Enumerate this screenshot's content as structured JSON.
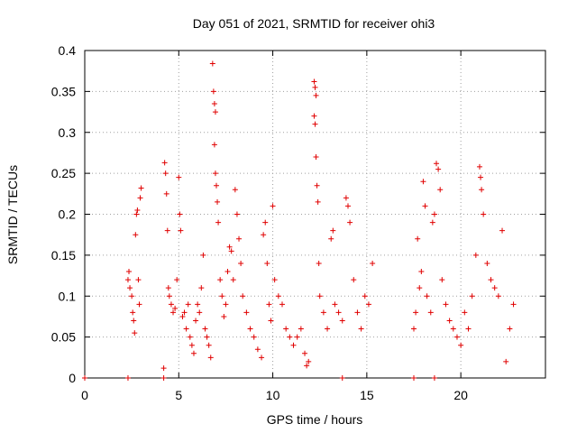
{
  "chart_data": {
    "type": "scatter",
    "title": "Day 051 of 2021, SRMTID for receiver ohi3",
    "xlabel": "GPS time / hours",
    "ylabel": "SRMTID / TECUs",
    "xlim": [
      0,
      24.5
    ],
    "ylim": [
      0,
      0.4
    ],
    "xticks": [
      0,
      5,
      10,
      15,
      20
    ],
    "xtick_labels": [
      "0",
      "5",
      "10",
      "15",
      "20"
    ],
    "yticks": [
      0,
      0.05,
      0.1,
      0.15,
      0.2,
      0.25,
      0.3,
      0.35,
      0.4
    ],
    "ytick_labels": [
      "0",
      "0.05",
      "0.1",
      "0.15",
      "0.2",
      "0.25",
      "0.3",
      "0.35",
      "0.4"
    ],
    "grid": true,
    "marker": "+",
    "color": "#e00000",
    "series": [
      {
        "name": "SRMTID",
        "points": [
          [
            0.0,
            0.0
          ],
          [
            2.3,
            0.0
          ],
          [
            4.2,
            0.0
          ],
          [
            13.7,
            0.0
          ],
          [
            17.5,
            0.0
          ],
          [
            18.6,
            0.0
          ],
          [
            2.3,
            0.12
          ],
          [
            2.35,
            0.13
          ],
          [
            2.4,
            0.11
          ],
          [
            2.5,
            0.1
          ],
          [
            2.55,
            0.08
          ],
          [
            2.6,
            0.07
          ],
          [
            2.65,
            0.055
          ],
          [
            2.7,
            0.175
          ],
          [
            2.75,
            0.2
          ],
          [
            2.8,
            0.205
          ],
          [
            2.85,
            0.12
          ],
          [
            2.9,
            0.09
          ],
          [
            2.95,
            0.22
          ],
          [
            3.0,
            0.232
          ],
          [
            4.2,
            0.012
          ],
          [
            4.25,
            0.263
          ],
          [
            4.3,
            0.25
          ],
          [
            4.35,
            0.225
          ],
          [
            4.4,
            0.18
          ],
          [
            4.45,
            0.11
          ],
          [
            4.5,
            0.1
          ],
          [
            4.6,
            0.09
          ],
          [
            4.7,
            0.08
          ],
          [
            4.8,
            0.085
          ],
          [
            4.9,
            0.12
          ],
          [
            5.0,
            0.245
          ],
          [
            5.05,
            0.2
          ],
          [
            5.1,
            0.18
          ],
          [
            5.2,
            0.075
          ],
          [
            5.3,
            0.08
          ],
          [
            5.4,
            0.06
          ],
          [
            5.5,
            0.09
          ],
          [
            5.6,
            0.05
          ],
          [
            5.7,
            0.04
          ],
          [
            5.8,
            0.03
          ],
          [
            5.9,
            0.07
          ],
          [
            6.0,
            0.09
          ],
          [
            6.1,
            0.08
          ],
          [
            6.2,
            0.11
          ],
          [
            6.3,
            0.15
          ],
          [
            6.4,
            0.06
          ],
          [
            6.5,
            0.05
          ],
          [
            6.6,
            0.04
          ],
          [
            6.7,
            0.025
          ],
          [
            6.8,
            0.384
          ],
          [
            6.85,
            0.35
          ],
          [
            6.9,
            0.335
          ],
          [
            6.95,
            0.325
          ],
          [
            6.9,
            0.285
          ],
          [
            6.95,
            0.25
          ],
          [
            7.0,
            0.235
          ],
          [
            7.05,
            0.215
          ],
          [
            7.1,
            0.19
          ],
          [
            7.2,
            0.12
          ],
          [
            7.3,
            0.1
          ],
          [
            7.4,
            0.075
          ],
          [
            7.5,
            0.09
          ],
          [
            7.6,
            0.13
          ],
          [
            7.7,
            0.16
          ],
          [
            7.8,
            0.155
          ],
          [
            7.9,
            0.12
          ],
          [
            8.0,
            0.23
          ],
          [
            8.1,
            0.2
          ],
          [
            8.2,
            0.17
          ],
          [
            8.3,
            0.14
          ],
          [
            8.4,
            0.1
          ],
          [
            8.6,
            0.08
          ],
          [
            8.8,
            0.06
          ],
          [
            9.0,
            0.05
          ],
          [
            9.2,
            0.035
          ],
          [
            9.4,
            0.025
          ],
          [
            9.5,
            0.175
          ],
          [
            9.6,
            0.19
          ],
          [
            9.7,
            0.14
          ],
          [
            9.8,
            0.09
          ],
          [
            9.9,
            0.07
          ],
          [
            10.0,
            0.21
          ],
          [
            10.1,
            0.12
          ],
          [
            10.3,
            0.1
          ],
          [
            10.5,
            0.09
          ],
          [
            10.7,
            0.06
          ],
          [
            10.9,
            0.05
          ],
          [
            11.1,
            0.04
          ],
          [
            11.3,
            0.05
          ],
          [
            11.5,
            0.06
          ],
          [
            11.7,
            0.03
          ],
          [
            11.8,
            0.015
          ],
          [
            11.9,
            0.02
          ],
          [
            12.2,
            0.362
          ],
          [
            12.25,
            0.355
          ],
          [
            12.3,
            0.345
          ],
          [
            12.2,
            0.32
          ],
          [
            12.25,
            0.31
          ],
          [
            12.3,
            0.27
          ],
          [
            12.35,
            0.235
          ],
          [
            12.4,
            0.215
          ],
          [
            12.45,
            0.14
          ],
          [
            12.5,
            0.1
          ],
          [
            12.7,
            0.08
          ],
          [
            12.9,
            0.06
          ],
          [
            13.1,
            0.17
          ],
          [
            13.2,
            0.18
          ],
          [
            13.3,
            0.09
          ],
          [
            13.5,
            0.08
          ],
          [
            13.7,
            0.07
          ],
          [
            13.9,
            0.22
          ],
          [
            14.0,
            0.21
          ],
          [
            14.1,
            0.19
          ],
          [
            14.3,
            0.12
          ],
          [
            14.5,
            0.08
          ],
          [
            14.7,
            0.06
          ],
          [
            14.9,
            0.1
          ],
          [
            15.1,
            0.09
          ],
          [
            15.3,
            0.14
          ],
          [
            17.5,
            0.06
          ],
          [
            17.6,
            0.08
          ],
          [
            17.7,
            0.17
          ],
          [
            17.8,
            0.11
          ],
          [
            17.9,
            0.13
          ],
          [
            18.0,
            0.24
          ],
          [
            18.1,
            0.21
          ],
          [
            18.2,
            0.1
          ],
          [
            18.4,
            0.08
          ],
          [
            18.5,
            0.19
          ],
          [
            18.6,
            0.2
          ],
          [
            18.7,
            0.262
          ],
          [
            18.8,
            0.255
          ],
          [
            18.9,
            0.23
          ],
          [
            19.0,
            0.12
          ],
          [
            19.2,
            0.09
          ],
          [
            19.4,
            0.07
          ],
          [
            19.6,
            0.06
          ],
          [
            19.8,
            0.05
          ],
          [
            20.0,
            0.04
          ],
          [
            20.2,
            0.08
          ],
          [
            20.4,
            0.06
          ],
          [
            20.6,
            0.1
          ],
          [
            20.8,
            0.15
          ],
          [
            21.0,
            0.258
          ],
          [
            21.05,
            0.245
          ],
          [
            21.1,
            0.23
          ],
          [
            21.2,
            0.2
          ],
          [
            21.4,
            0.14
          ],
          [
            21.6,
            0.12
          ],
          [
            21.8,
            0.11
          ],
          [
            22.0,
            0.1
          ],
          [
            22.2,
            0.18
          ],
          [
            22.4,
            0.02
          ],
          [
            22.6,
            0.06
          ],
          [
            22.8,
            0.09
          ]
        ]
      }
    ]
  }
}
